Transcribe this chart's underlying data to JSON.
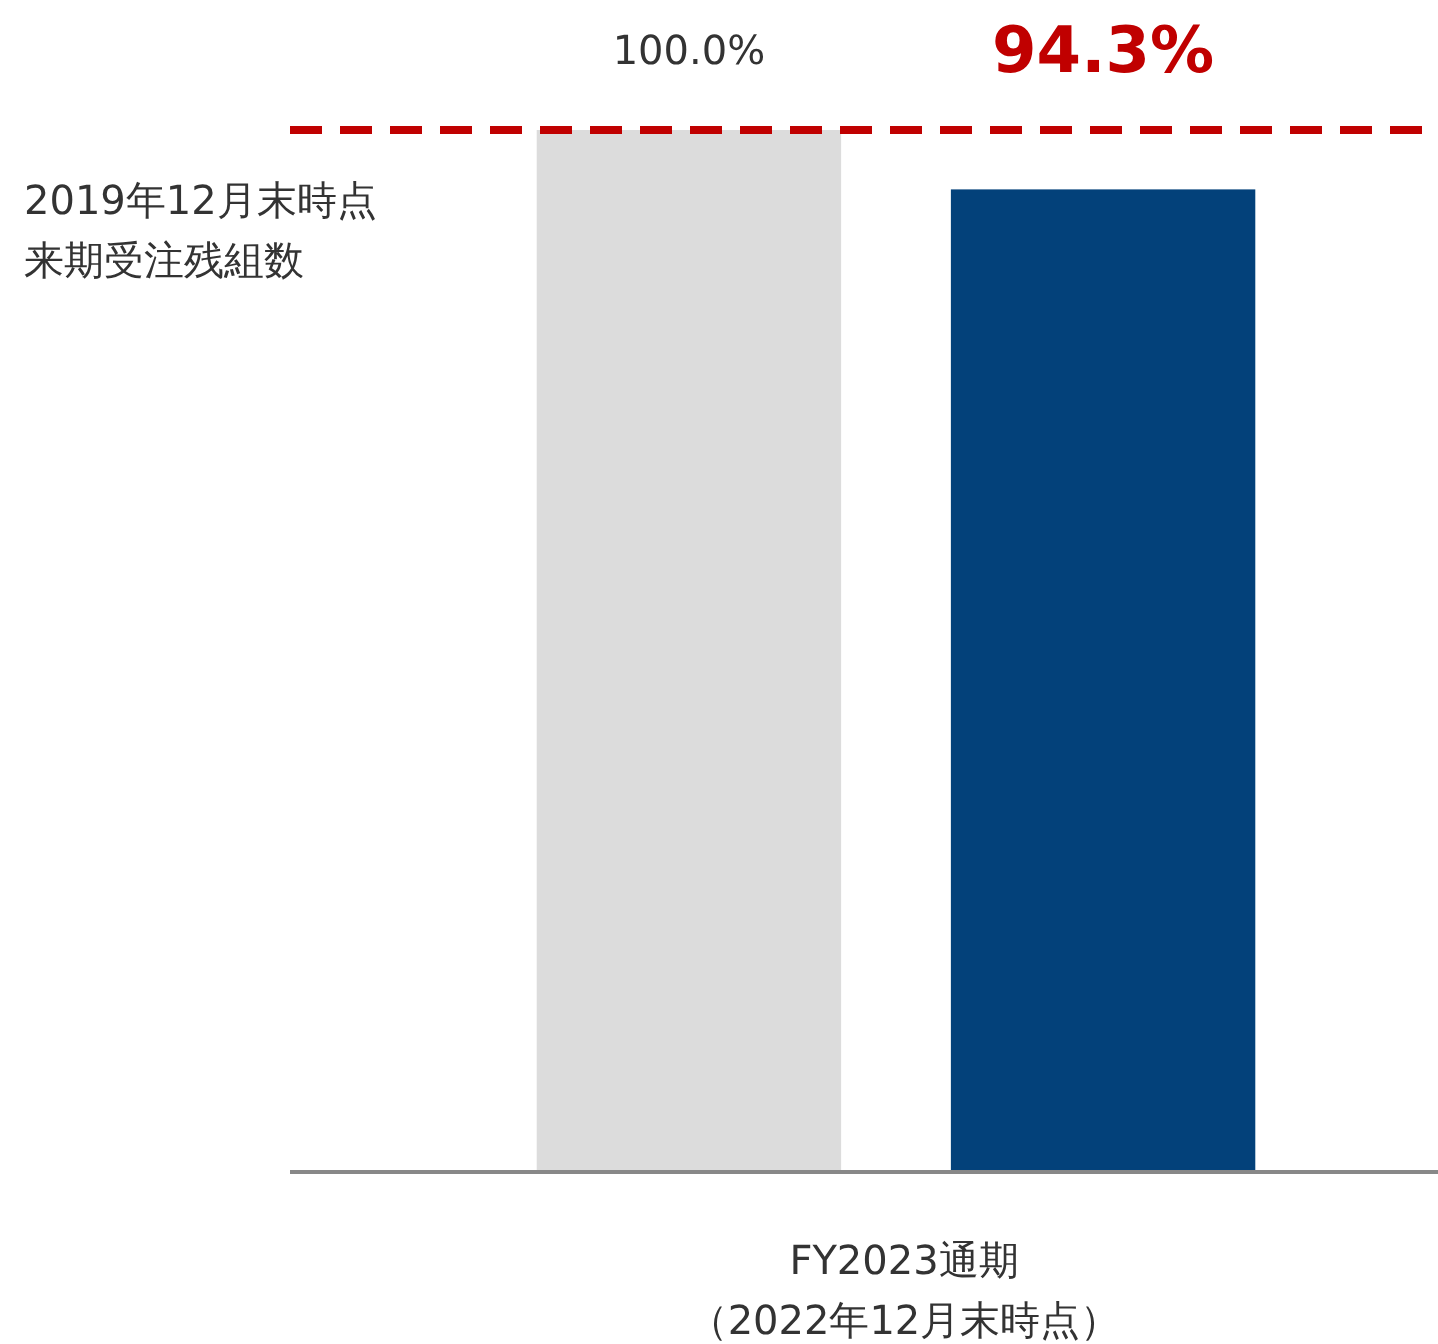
{
  "chart_data": {
    "type": "bar",
    "categories": [
      null,
      null
    ],
    "xlabel": "FY2023通期（2022年12月末時点）",
    "values": [
      100.0,
      94.3
    ],
    "colors": [
      "#dcdcdc",
      "#03417a"
    ],
    "value_labels": [
      "100.0%",
      "94.3%"
    ],
    "ref_lines": [
      {
        "axis": "y",
        "value": 100,
        "label": "2019年12月末時点来期受注残組数",
        "color": "#c00000",
        "line_style": "dashed"
      }
    ]
  }
}
